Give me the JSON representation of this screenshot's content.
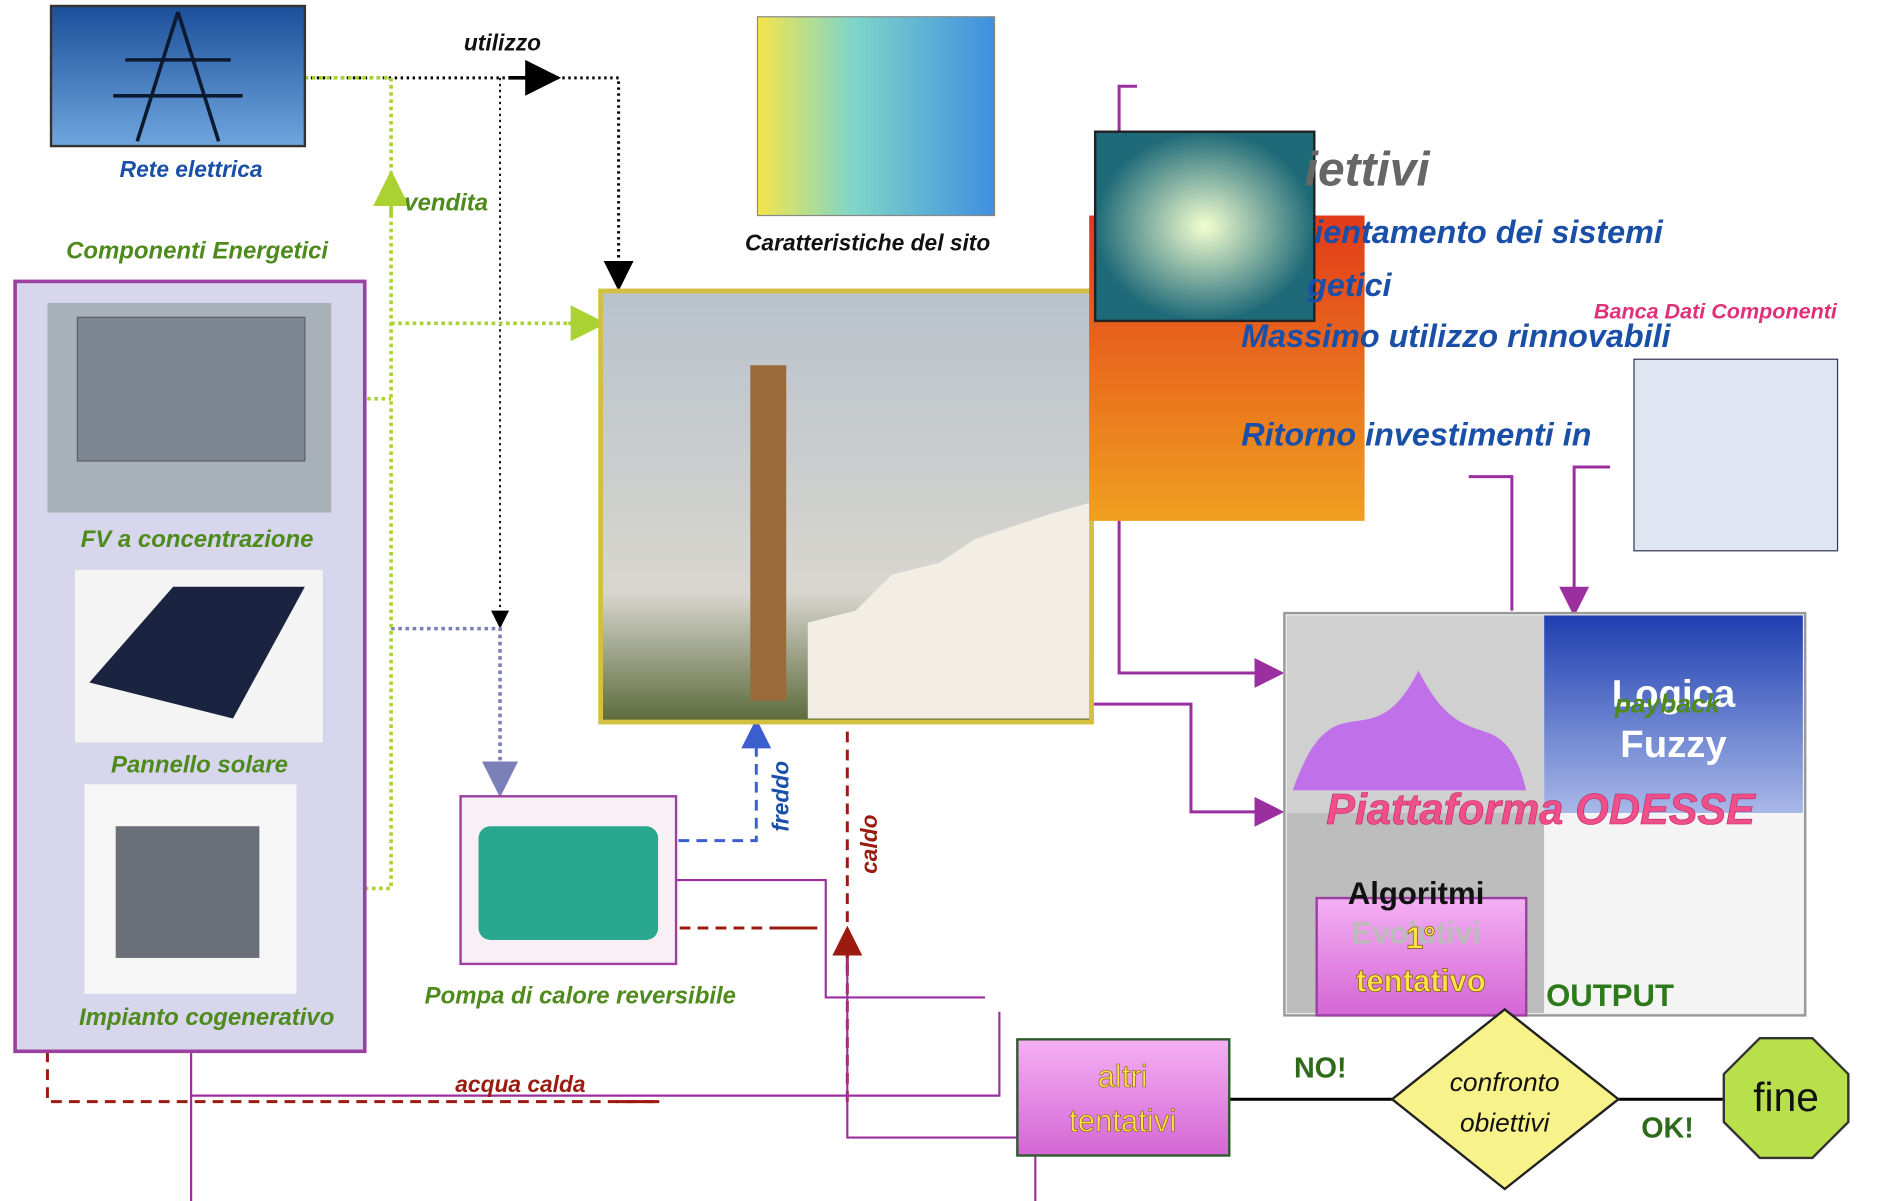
{
  "labels": {
    "utilizzo": "utilizzo",
    "vendita": "vendita",
    "rete": "Rete elettrica",
    "componenti": "Componenti Energetici",
    "fv": "FV a concentrazione",
    "pannello": "Pannello solare",
    "cogen": "Impianto cogenerativo",
    "sito": "Caratteristiche del sito",
    "pompa": "Pompa di calore reversibile",
    "freddo": "freddo",
    "caldo": "caldo",
    "acqua": "acqua calda"
  },
  "objectives": {
    "title": "iettivi",
    "items": [
      "ientamento dei sistemi",
      "getici",
      "Massimo utilizzo rinnovabili",
      "Ritorno investimenti in"
    ]
  },
  "banca": "Banca Dati Componenti",
  "platform": {
    "title": "Piattaforma ODESSE",
    "fuzzy": [
      "Logica",
      "Fuzzy"
    ],
    "payback": "payback",
    "algoritmi": [
      "Algoritmi",
      "Evolutivi"
    ],
    "output": "OUTPUT"
  },
  "flow": {
    "primo": [
      "1°",
      "tentativo"
    ],
    "altri": [
      "altri",
      "tentativi"
    ],
    "confronto": [
      "confronto",
      "obiettivi"
    ],
    "no": "NO!",
    "ok": "OK!",
    "fine": "fine"
  }
}
